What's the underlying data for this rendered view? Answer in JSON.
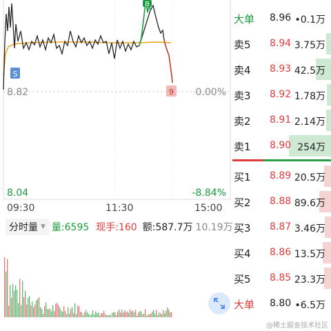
{
  "chart": {
    "price_top_left": "",
    "ref_price": "8.82",
    "ref_pct": "0.00%",
    "low_price": "8.04",
    "low_pct": "-8.84%",
    "marker_s": "S",
    "marker_b": "B",
    "marker_9": "9",
    "times": [
      "09:30",
      "11:30",
      "15:00"
    ],
    "colors": {
      "price_line": "#222222",
      "avg_line": "#e8a317",
      "up": "#1a9b3c",
      "down": "#e03b3b"
    }
  },
  "volume": {
    "selector_label": "分时量",
    "qty_label": "量:6595",
    "current_label": "现手:160",
    "amount_label": "额:587.7万",
    "max_label": "10.19万"
  },
  "order_book": {
    "big_sell": {
      "name": "大单",
      "price": "8.96",
      "vol": "•0.1万"
    },
    "asks": [
      {
        "name": "卖5",
        "price": "8.94",
        "vol": "3.75万",
        "bar": 0.05
      },
      {
        "name": "卖4",
        "price": "8.93",
        "vol": "42.5万",
        "bar": 0.15
      },
      {
        "name": "卖3",
        "price": "8.92",
        "vol": "1.78万",
        "bar": 0.04
      },
      {
        "name": "卖2",
        "price": "8.91",
        "vol": "2.14万",
        "bar": 0.05
      },
      {
        "name": "卖1",
        "price": "8.90",
        "vol": "254万",
        "bar": 0.42
      }
    ],
    "bids": [
      {
        "name": "买1",
        "price": "8.89",
        "vol": "20.5万",
        "bar": 0.07
      },
      {
        "name": "买2",
        "price": "8.88",
        "vol": "89.6万",
        "bar": 0.12
      },
      {
        "name": "买3",
        "price": "8.87",
        "vol": "3.46万",
        "bar": 0.06
      },
      {
        "name": "买4",
        "price": "8.86",
        "vol": "13.5万",
        "bar": 0.08
      },
      {
        "name": "买5",
        "price": "8.85",
        "vol": "23.3万",
        "bar": 0.07
      }
    ],
    "big_buy": {
      "name": "大单",
      "price": "8.80",
      "vol": "•6.5万"
    }
  },
  "watermark": "@稀土掘金技术社区"
}
